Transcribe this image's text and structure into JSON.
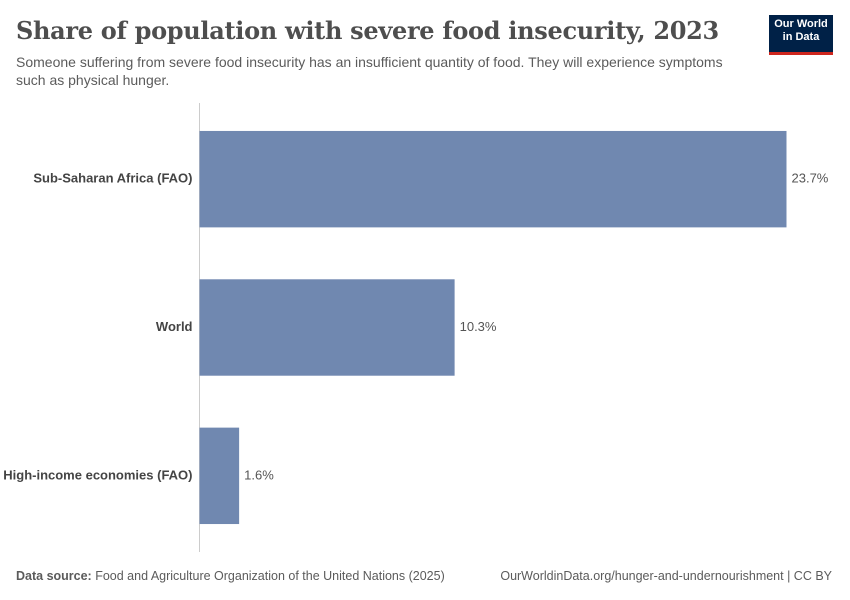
{
  "chart_data": {
    "type": "bar",
    "orientation": "horizontal",
    "title": "Share of population with severe food insecurity, 2023",
    "subtitle": "Someone suffering from severe food insecurity has an insufficient quantity of food. They will experience symptoms such as physical hunger.",
    "categories": [
      "Sub-Saharan Africa (FAO)",
      "World",
      "High-income economies (FAO)"
    ],
    "values": [
      23.7,
      10.3,
      1.6
    ],
    "value_labels": [
      "23.7%",
      "10.3%",
      "1.6%"
    ],
    "color": "#7088b0"
  },
  "logo": "Our World in Data",
  "footer": {
    "source_label": "Data source:",
    "source": "Food and Agriculture Organization of the United Nations (2025)",
    "link": "OurWorldinData.org/hunger-and-undernourishment | CC BY"
  }
}
